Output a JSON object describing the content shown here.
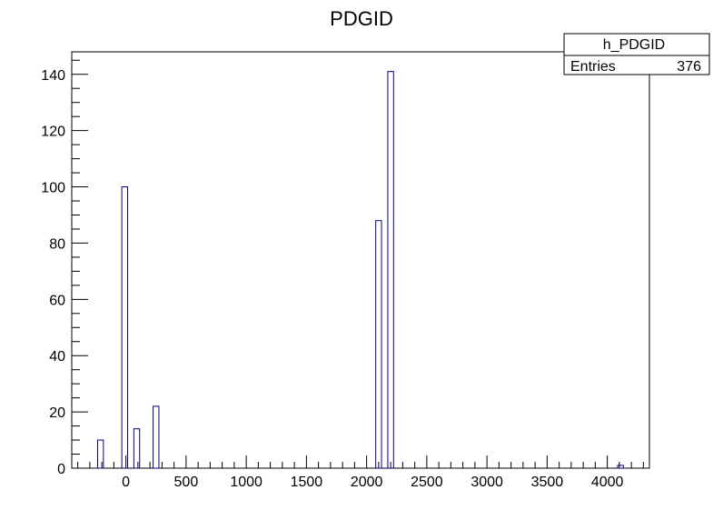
{
  "chart_data": {
    "type": "bar",
    "title": "PDGID",
    "xlabel": "",
    "ylabel": "",
    "xlim": [
      -450,
      4350
    ],
    "ylim": [
      0,
      148
    ],
    "bin_width": 48,
    "x_ticks": [
      0,
      500,
      1000,
      1500,
      2000,
      2500,
      3000,
      3500,
      4000
    ],
    "y_ticks": [
      0,
      20,
      40,
      60,
      80,
      100,
      120,
      140
    ],
    "bars": [
      {
        "x": -211,
        "value": 10
      },
      {
        "x": -10,
        "value": 100
      },
      {
        "x": 90,
        "value": 14
      },
      {
        "x": 250,
        "value": 22
      },
      {
        "x": 2100,
        "value": 88
      },
      {
        "x": 2200,
        "value": 141
      },
      {
        "x": 4110,
        "value": 1
      }
    ],
    "stats_box": {
      "name": "h_PDGID",
      "entries_label": "Entries",
      "entries_value": "376"
    },
    "colors": {
      "bar_outline": "#000080",
      "axis": "#000000"
    }
  }
}
